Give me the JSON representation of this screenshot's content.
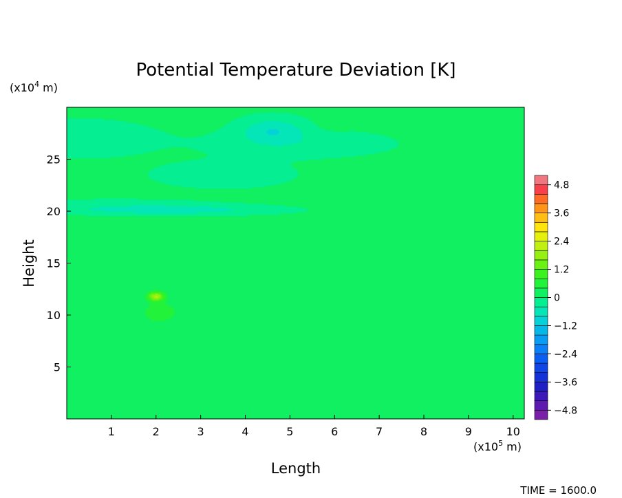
{
  "chart_data": {
    "type": "heatmap",
    "title": "Potential Temperature Deviation [K]",
    "xlabel": "Length",
    "ylabel": "Height",
    "x_unit": "(x10^5 m)",
    "y_unit": "(x10^4 m)",
    "xlim": [
      0,
      10.25
    ],
    "ylim": [
      0,
      30
    ],
    "x_ticks": [
      1,
      2,
      3,
      4,
      5,
      6,
      7,
      8,
      9,
      10
    ],
    "y_ticks": [
      5,
      10,
      15,
      20,
      25
    ],
    "colorbar": {
      "min": -5.2,
      "max": 5.2,
      "levels": 26,
      "tick_values": [
        4.8,
        3.6,
        2.4,
        1.2,
        0,
        -1.2,
        -2.4,
        -3.6,
        -4.8
      ],
      "tick_labels": [
        "4.8",
        "3.6",
        "2.4",
        "1.2",
        "0",
        "−1.2",
        "−2.4",
        "−3.6",
        "−4.8"
      ]
    },
    "background_value": 0.1,
    "features": [
      {
        "x": 2.0,
        "y": 11.8,
        "value": 1.9,
        "sx": 0.18,
        "sy": 0.45
      },
      {
        "x": 2.1,
        "y": 10.3,
        "value": 0.45,
        "sx": 0.5,
        "sy": 1.1
      },
      {
        "x": 2.0,
        "y": 6.5,
        "value": 0.2,
        "sx": 0.3,
        "sy": 3.0
      },
      {
        "x": 2.3,
        "y": 20.1,
        "value": -0.7,
        "sx": 2.2,
        "sy": 0.45
      },
      {
        "x": 1.0,
        "y": 20.6,
        "value": -0.25,
        "sx": 2.5,
        "sy": 0.6
      },
      {
        "x": 4.6,
        "y": 27.8,
        "value": -0.8,
        "sx": 0.7,
        "sy": 1.2
      },
      {
        "x": 5.2,
        "y": 26.5,
        "value": -0.35,
        "sx": 2.0,
        "sy": 1.3
      },
      {
        "x": 0.2,
        "y": 27.0,
        "value": -0.45,
        "sx": 1.6,
        "sy": 1.6
      },
      {
        "x": 3.5,
        "y": 23.5,
        "value": -0.3,
        "sx": 1.6,
        "sy": 1.3
      },
      {
        "x": 6.0,
        "y": 28.5,
        "value": 0.3,
        "sx": 0.3,
        "sy": 0.6
      }
    ]
  },
  "footer": {
    "time_label": "TIME = 1600.0"
  }
}
